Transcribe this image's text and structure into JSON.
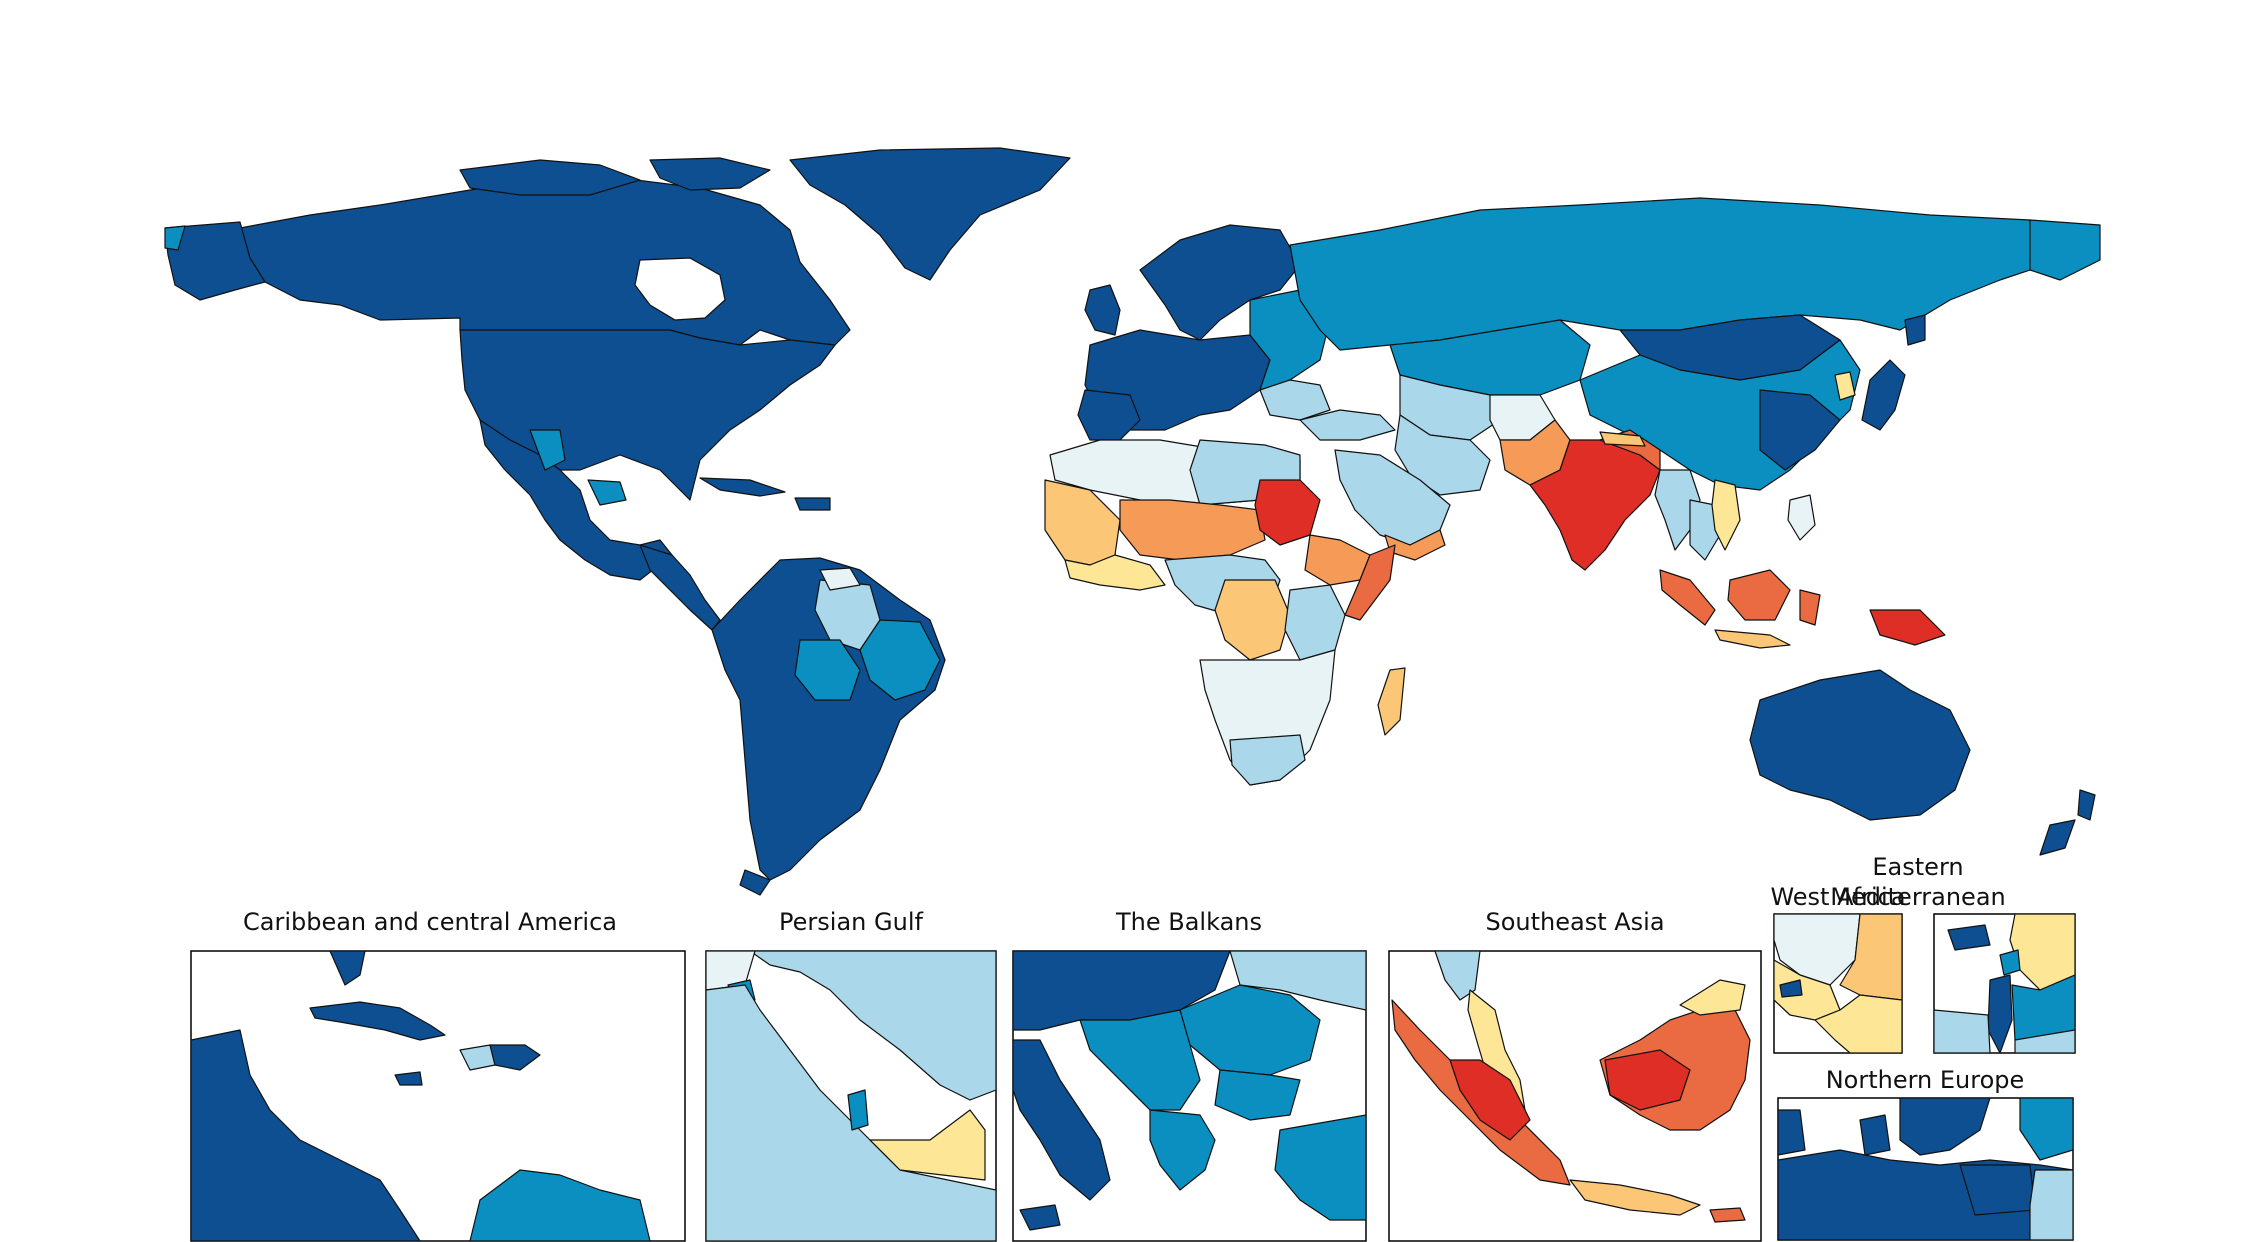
{
  "palette": {
    "very_low": "#0d4f91",
    "low": "#0b8fc0",
    "mid_low": "#abd7ea",
    "pale": "#e7f3f4",
    "mid_high": "#fde695",
    "high_light": "#fbc776",
    "high": "#f59a57",
    "very_high": "#ea6a41",
    "extreme": "#de2e26",
    "no_data": "#ffffff"
  },
  "insets": [
    {
      "title": "Caribbean and central America"
    },
    {
      "title": "Persian Gulf"
    },
    {
      "title": "The Balkans"
    },
    {
      "title": "Southeast Asia"
    },
    {
      "title": "West Africa"
    },
    {
      "title_lines": [
        "Eastern",
        "Mediterranean"
      ]
    },
    {
      "title": "Northern Europe"
    }
  ]
}
